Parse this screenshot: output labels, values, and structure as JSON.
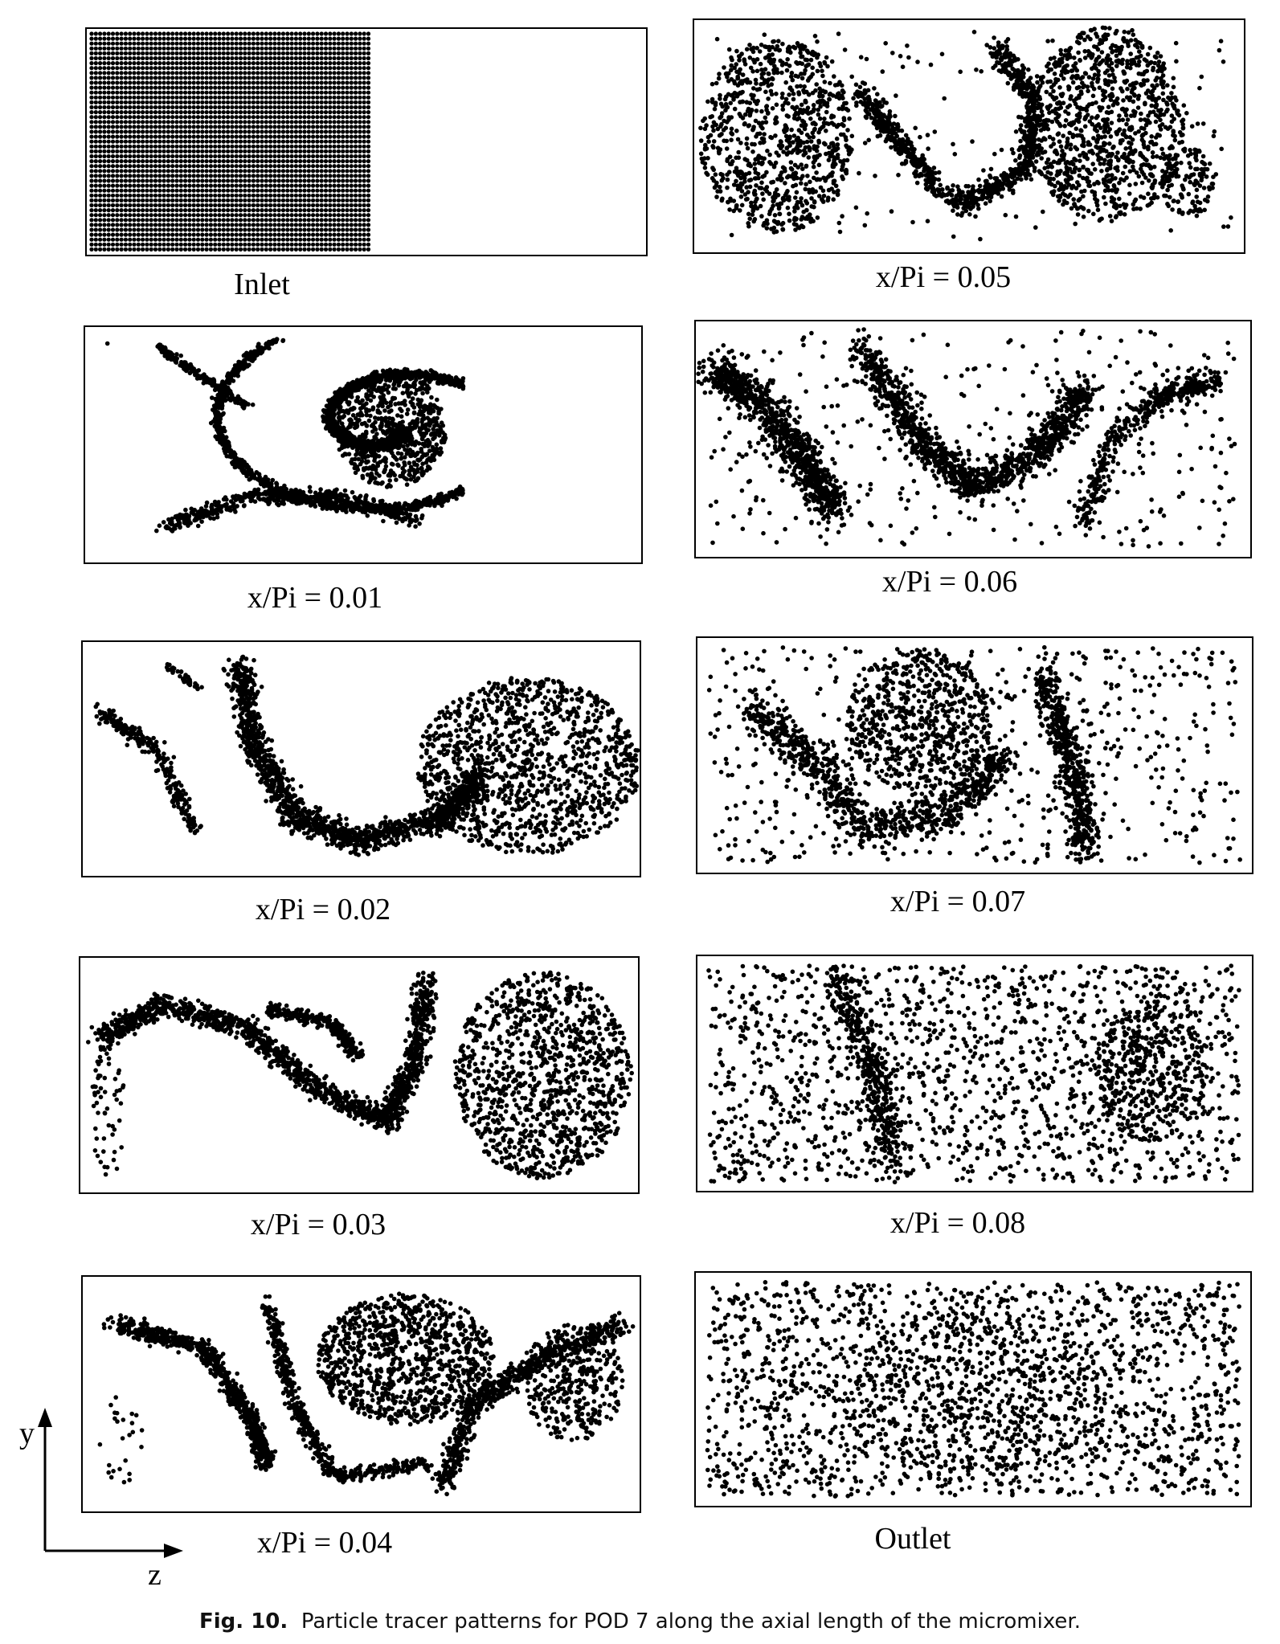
{
  "figure": {
    "panels": [
      {
        "id": "inlet",
        "label": "Inlet",
        "pattern": "inlet-grid"
      },
      {
        "id": "x001",
        "label": "x/Pi = 0.01",
        "pattern": "swirl-left"
      },
      {
        "id": "x002",
        "label": "x/Pi = 0.02",
        "pattern": "u-valley"
      },
      {
        "id": "x003",
        "label": "x/Pi = 0.03",
        "pattern": "hook"
      },
      {
        "id": "x004",
        "label": "x/Pi = 0.04",
        "pattern": "multi-swirl"
      },
      {
        "id": "x005",
        "label": "x/Pi = 0.05",
        "pattern": "s-curve"
      },
      {
        "id": "x006",
        "label": "x/Pi = 0.06",
        "pattern": "mixed-a"
      },
      {
        "id": "x007",
        "label": "x/Pi = 0.07",
        "pattern": "mixed-b"
      },
      {
        "id": "x008",
        "label": "x/Pi = 0.08",
        "pattern": "mixed-c"
      },
      {
        "id": "outlet",
        "label": "Outlet",
        "pattern": "uniform"
      }
    ],
    "axes": {
      "vertical": "y",
      "horizontal": "z"
    },
    "caption": {
      "number": "Fig. 10.",
      "text": "Particle tracer patterns for POD 7 along the axial length of the micromixer."
    }
  }
}
